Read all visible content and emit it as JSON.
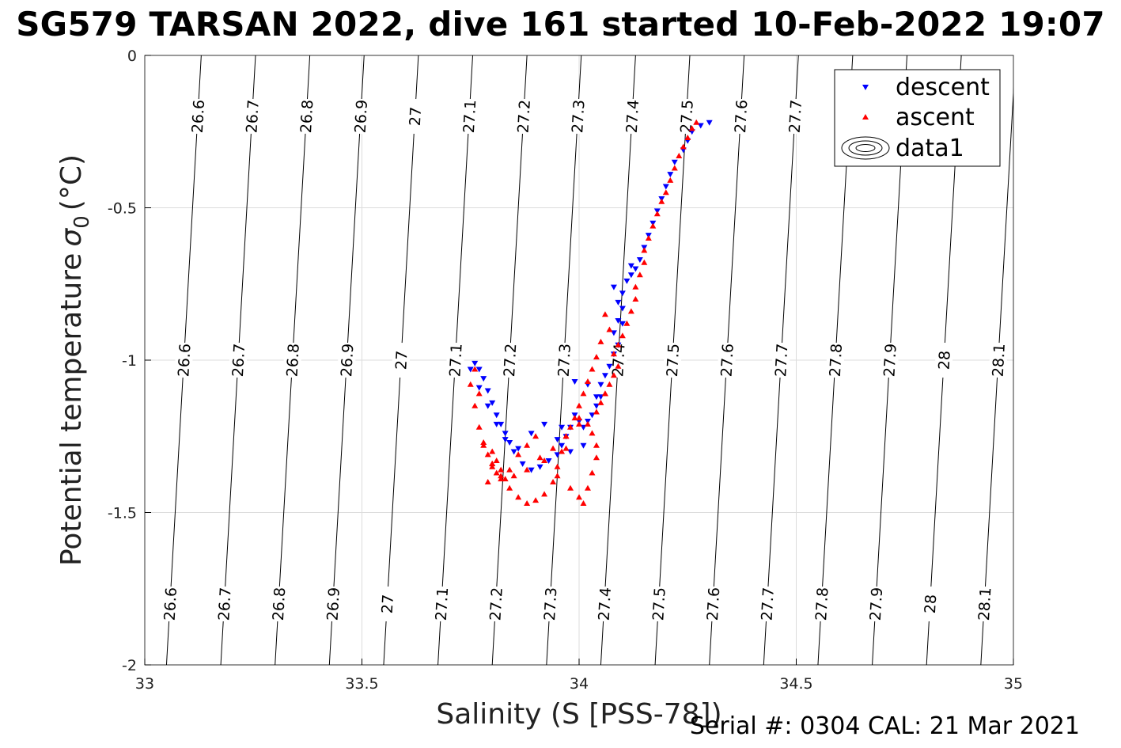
{
  "title": "SG579 TARSAN 2022, dive 161 started 10-Feb-2022 19:07",
  "footer": "Serial #: 0304  CAL: 21 Mar 2021",
  "chart_data": {
    "type": "scatter",
    "title": "SG579 TARSAN 2022, dive 161 started 10-Feb-2022 19:07",
    "xlabel": "Salinity (S [PSS-78])",
    "ylabel": "Potential temperature σ_0 (°C)",
    "xlim": [
      33,
      35
    ],
    "ylim": [
      -2,
      0
    ],
    "xticks": [
      "33",
      "33.5",
      "34",
      "34.5",
      "35"
    ],
    "yticks": [
      "0",
      "-0.5",
      "-1",
      "-1.5",
      "-2"
    ],
    "grid": true,
    "legend_position": "top-right",
    "legend": [
      {
        "label": "descent",
        "marker": "triangle-down",
        "color": "#0000ff"
      },
      {
        "label": "ascent",
        "marker": "triangle-up",
        "color": "#ff0000"
      },
      {
        "label": "data1",
        "marker": "contour",
        "color": "#000000"
      }
    ],
    "contours": {
      "levels": [
        26.6,
        26.7,
        26.8,
        26.9,
        27,
        27.1,
        27.2,
        27.3,
        27.4,
        27.5,
        27.6,
        27.7,
        27.8,
        27.9,
        28,
        28.1
      ],
      "labels": [
        "26.6",
        "26.7",
        "26.8",
        "26.9",
        "27",
        "27.1",
        "27.2",
        "27.3",
        "27.4",
        "27.5",
        "27.6",
        "27.7",
        "27.8",
        "27.9",
        "28",
        "28.1"
      ],
      "salinity_at_temp_0": [
        33.13,
        33.255,
        33.38,
        33.505,
        33.63,
        33.755,
        33.88,
        34.005,
        34.13,
        34.255,
        34.38,
        34.505,
        34.63,
        34.755,
        34.88,
        35.005
      ],
      "salinity_at_temp_minus2": [
        33.05,
        33.175,
        33.3,
        33.425,
        33.55,
        33.675,
        33.8,
        33.925,
        34.05,
        34.175,
        34.3,
        34.425,
        34.55,
        34.675,
        34.8,
        34.925
      ],
      "color": "#000000"
    },
    "series": [
      {
        "name": "descent",
        "color": "#0000ff",
        "marker": "triangle-down",
        "x": [
          34.3,
          34.28,
          34.26,
          34.25,
          34.24,
          34.22,
          34.21,
          34.2,
          34.19,
          34.18,
          34.17,
          34.16,
          34.15,
          34.14,
          34.13,
          34.12,
          34.12,
          34.11,
          34.1,
          34.1,
          34.09,
          34.08,
          34.09,
          34.1,
          34.09,
          34.08,
          34.08,
          34.07,
          34.06,
          34.05,
          34.05,
          34.04,
          34.03,
          34.02,
          34.01,
          34.0,
          33.99,
          33.98,
          33.97,
          33.96,
          33.95,
          33.93,
          33.91,
          33.89,
          33.87,
          33.85,
          33.84,
          33.83,
          33.82,
          33.81,
          33.8,
          33.79,
          33.78,
          33.77,
          33.76,
          33.75,
          33.77,
          33.79,
          33.81,
          33.83,
          33.86,
          33.89,
          33.92,
          33.95,
          33.98,
          34.01,
          34.04,
          34.02,
          33.99,
          33.96
        ],
        "y": [
          -0.22,
          -0.23,
          -0.25,
          -0.28,
          -0.31,
          -0.35,
          -0.39,
          -0.43,
          -0.47,
          -0.51,
          -0.55,
          -0.59,
          -0.63,
          -0.67,
          -0.7,
          -0.72,
          -0.69,
          -0.74,
          -0.78,
          -0.83,
          -0.87,
          -0.91,
          -0.95,
          -0.88,
          -0.81,
          -0.76,
          -0.98,
          -1.02,
          -1.05,
          -1.08,
          -1.12,
          -1.15,
          -1.18,
          -1.2,
          -1.22,
          -1.2,
          -1.18,
          -1.22,
          -1.25,
          -1.28,
          -1.31,
          -1.33,
          -1.35,
          -1.36,
          -1.34,
          -1.3,
          -1.27,
          -1.24,
          -1.21,
          -1.18,
          -1.14,
          -1.1,
          -1.06,
          -1.03,
          -1.01,
          -1.03,
          -1.09,
          -1.15,
          -1.21,
          -1.26,
          -1.29,
          -1.24,
          -1.21,
          -1.26,
          -1.3,
          -1.28,
          -1.12,
          -1.08,
          -1.07,
          -1.22
        ]
      },
      {
        "name": "ascent",
        "color": "#ff0000",
        "marker": "triangle-up",
        "x": [
          34.27,
          34.26,
          34.25,
          34.24,
          34.23,
          34.22,
          34.21,
          34.2,
          34.19,
          34.18,
          34.17,
          34.16,
          34.15,
          34.15,
          34.14,
          34.13,
          34.13,
          34.12,
          34.11,
          34.1,
          34.09,
          34.08,
          34.09,
          34.08,
          34.07,
          34.06,
          34.05,
          34.04,
          34.06,
          34.07,
          34.05,
          34.04,
          34.03,
          34.02,
          34.01,
          34.0,
          33.99,
          33.98,
          33.97,
          33.96,
          33.95,
          33.94,
          33.92,
          33.9,
          33.88,
          33.86,
          33.84,
          33.83,
          33.82,
          33.81,
          33.8,
          33.8,
          33.81,
          33.8,
          33.79,
          33.78,
          33.77,
          33.76,
          33.75,
          33.76,
          33.78,
          33.8,
          33.82,
          33.84,
          33.86,
          33.88,
          33.9,
          33.92,
          33.95,
          33.98,
          34.0,
          34.01,
          34.02,
          34.03,
          34.04,
          34.04,
          34.03,
          34.02,
          34.0,
          33.97,
          33.94,
          33.91,
          33.88,
          33.85,
          33.82,
          33.79,
          33.77,
          34.06,
          33.97,
          34.0
        ],
        "y": [
          -0.22,
          -0.24,
          -0.27,
          -0.3,
          -0.33,
          -0.37,
          -0.41,
          -0.45,
          -0.48,
          -0.52,
          -0.56,
          -0.6,
          -0.64,
          -0.68,
          -0.72,
          -0.76,
          -0.8,
          -0.84,
          -0.88,
          -0.92,
          -0.95,
          -0.98,
          -1.02,
          -1.05,
          -1.08,
          -1.11,
          -1.14,
          -1.17,
          -0.85,
          -0.9,
          -0.94,
          -0.99,
          -1.03,
          -1.07,
          -1.11,
          -1.15,
          -1.19,
          -1.22,
          -1.25,
          -1.3,
          -1.35,
          -1.4,
          -1.44,
          -1.46,
          -1.47,
          -1.45,
          -1.42,
          -1.39,
          -1.36,
          -1.33,
          -1.3,
          -1.34,
          -1.37,
          -1.35,
          -1.31,
          -1.27,
          -1.22,
          -1.15,
          -1.08,
          -1.03,
          -1.28,
          -1.34,
          -1.38,
          -1.36,
          -1.31,
          -1.28,
          -1.25,
          -1.33,
          -1.38,
          -1.42,
          -1.45,
          -1.47,
          -1.42,
          -1.37,
          -1.32,
          -1.28,
          -1.24,
          -1.21,
          -1.19,
          -1.25,
          -1.29,
          -1.32,
          -1.36,
          -1.38,
          -1.39,
          -1.4,
          -1.11,
          -1.11,
          -1.29,
          -1.21
        ]
      }
    ]
  }
}
